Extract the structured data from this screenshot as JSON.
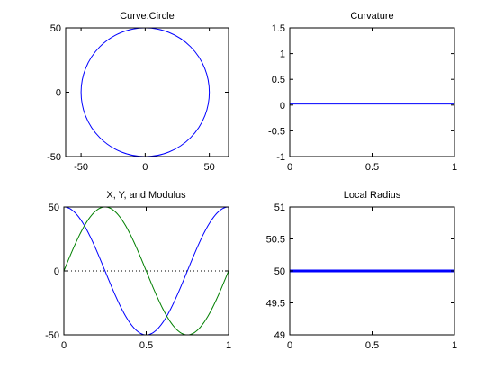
{
  "figure": {
    "background": "#ffffff",
    "axes_color": "#000000",
    "series_colors": {
      "blue": "#0000ff",
      "green": "#007f00",
      "black": "#000000"
    }
  },
  "chart_data": [
    {
      "id": "ax1",
      "type": "line",
      "title": "Curve:Circle",
      "xlabel": "",
      "ylabel": "",
      "xlim": [
        -62,
        65
      ],
      "ylim": [
        -50,
        50
      ],
      "xticks": [
        -50,
        0,
        50
      ],
      "yticks": [
        -50,
        0,
        50
      ],
      "xtick_labels": [
        "-50",
        "0",
        "50"
      ],
      "ytick_labels": [
        "-50",
        "0",
        "50"
      ],
      "grid": false,
      "series": [
        {
          "kind": "circle",
          "cx": 0,
          "cy": 0,
          "r": 50,
          "color": "#0000ff",
          "style": "solid"
        }
      ]
    },
    {
      "id": "ax2",
      "type": "line",
      "title": "Curvature",
      "xlabel": "",
      "ylabel": "",
      "xlim": [
        0,
        1
      ],
      "ylim": [
        -1,
        1.5
      ],
      "xticks": [
        0,
        0.5,
        1
      ],
      "yticks": [
        -1,
        -0.5,
        0,
        0.5,
        1,
        1.5
      ],
      "xtick_labels": [
        "0",
        "0.5",
        "1"
      ],
      "ytick_labels": [
        "-1",
        "-0.5",
        "0",
        "0.5",
        "1",
        "1.5"
      ],
      "grid": false,
      "series": [
        {
          "kind": "points",
          "x": [
            0,
            1
          ],
          "y": [
            0.02,
            0.02
          ],
          "color": "#0000ff",
          "style": "solid"
        }
      ]
    },
    {
      "id": "ax3",
      "type": "line",
      "title": "X, Y, and Modulus",
      "xlabel": "",
      "ylabel": "",
      "xlim": [
        0,
        1
      ],
      "ylim": [
        -50,
        50
      ],
      "xticks": [
        0,
        0.5,
        1
      ],
      "yticks": [
        -50,
        0,
        50
      ],
      "xtick_labels": [
        "0",
        "0.5",
        "1"
      ],
      "ytick_labels": [
        "-50",
        "0",
        "50"
      ],
      "grid": false,
      "series": [
        {
          "kind": "function",
          "fn": "cos",
          "amplitude": 50,
          "periods": 1,
          "x_range": [
            0,
            1
          ],
          "color": "#0000ff",
          "style": "solid"
        },
        {
          "kind": "function",
          "fn": "sin",
          "amplitude": 50,
          "periods": 1,
          "x_range": [
            0,
            1
          ],
          "color": "#007f00",
          "style": "solid"
        },
        {
          "kind": "points",
          "x": [
            0,
            1
          ],
          "y": [
            0,
            0
          ],
          "color": "#000000",
          "style": "dotted"
        }
      ]
    },
    {
      "id": "ax4",
      "type": "line",
      "title": "Local Radius",
      "xlabel": "",
      "ylabel": "",
      "xlim": [
        0,
        1
      ],
      "ylim": [
        49,
        51
      ],
      "xticks": [
        0,
        0.5,
        1
      ],
      "yticks": [
        49,
        49.5,
        50,
        50.5,
        51
      ],
      "xtick_labels": [
        "0",
        "0.5",
        "1"
      ],
      "ytick_labels": [
        "49",
        "49.5",
        "50",
        "50.5",
        "51"
      ],
      "grid": false,
      "series": [
        {
          "kind": "points",
          "x": [
            0,
            1
          ],
          "y": [
            50,
            50
          ],
          "color": "#0000ff",
          "style": "thick"
        }
      ]
    }
  ]
}
